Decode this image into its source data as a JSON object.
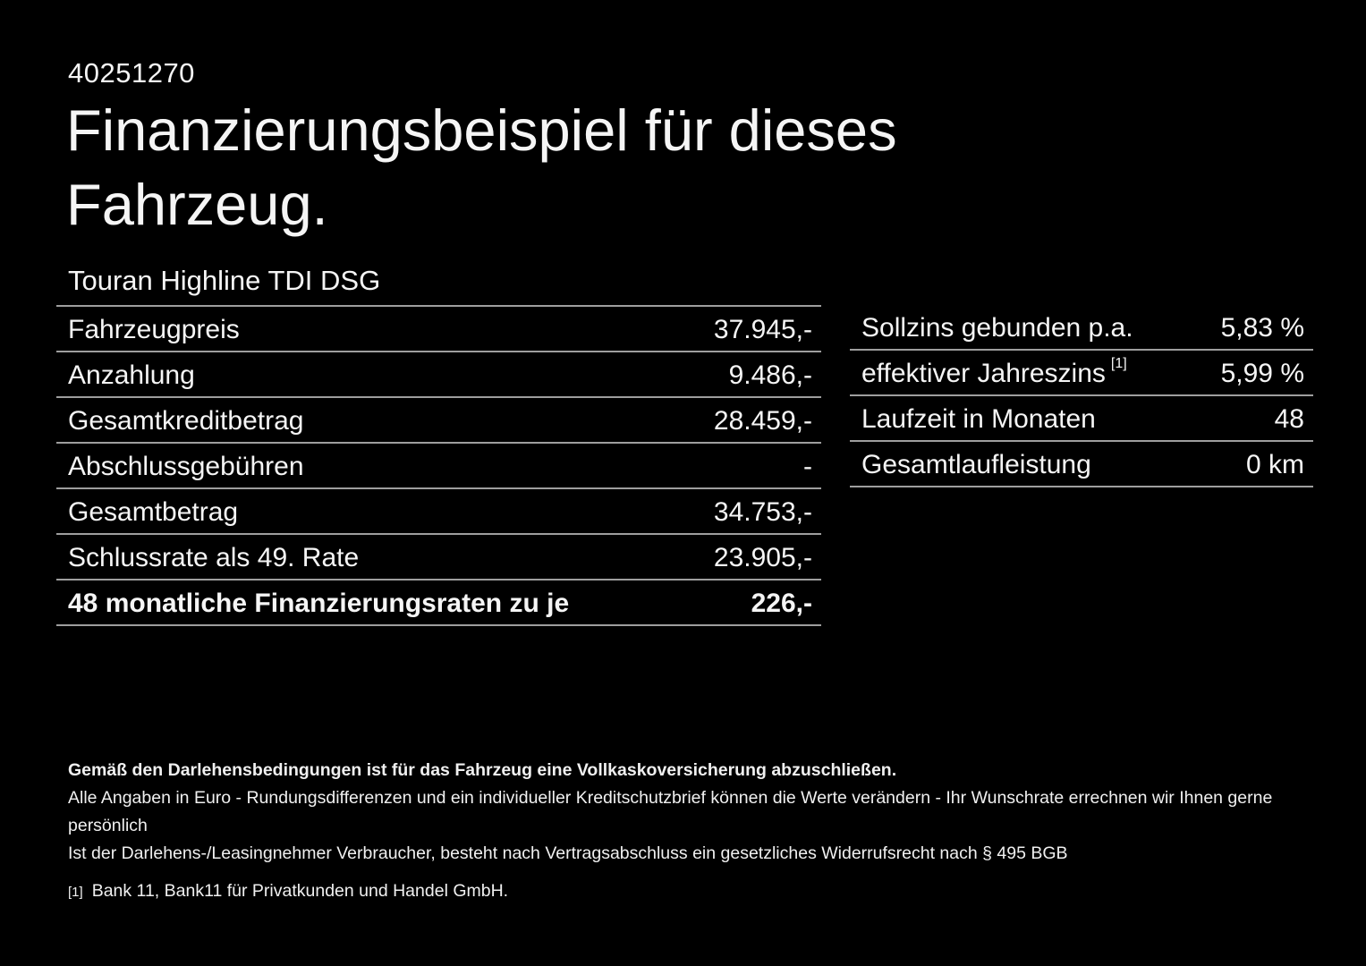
{
  "header": {
    "vehicle_id": "40251270",
    "title": "Finanzierungsbeispiel für dieses Fahrzeug.",
    "model": "Touran Highline TDI DSG"
  },
  "left_table": {
    "rows": [
      {
        "label": "Fahrzeugpreis",
        "value": "37.945,-"
      },
      {
        "label": "Anzahlung",
        "value": "9.486,-"
      },
      {
        "label": "Gesamtkreditbetrag",
        "value": "28.459,-"
      },
      {
        "label": "Abschlussgebühren",
        "value": "-"
      },
      {
        "label": "Gesamtbetrag",
        "value": "34.753,-"
      },
      {
        "label": "Schlussrate als 49. Rate",
        "value": "23.905,-"
      },
      {
        "label": "48 monatliche Finanzierungsraten zu je",
        "value": "226,-"
      }
    ]
  },
  "right_table": {
    "rows": [
      {
        "label": "Sollzins gebunden p.a.",
        "sup": "",
        "value": "5,83 %"
      },
      {
        "label": "effektiver Jahreszins",
        "sup": "[1]",
        "value": "5,99 %"
      },
      {
        "label": "Laufzeit in Monaten",
        "sup": "",
        "value": "48"
      },
      {
        "label": "Gesamtlaufleistung",
        "sup": "",
        "value": "0 km"
      }
    ]
  },
  "fine_print": {
    "line1": "Gemäß den Darlehensbedingungen ist für das Fahrzeug eine Vollkaskoversicherung abzuschließen.",
    "line2": "Alle Angaben in Euro - Rundungsdifferenzen und ein individueller Kreditschutzbrief können die Werte verändern - Ihr Wunschrate errechnen wir Ihnen gerne persönlich",
    "line3": "Ist der Darlehens-/Leasingnehmer Verbraucher, besteht nach Vertragsabschluss ein gesetzliches Widerrufsrecht nach § 495 BGB",
    "footnote_marker": "[1]",
    "footnote_text": "Bank 11, Bank11 für Privatkunden und Handel GmbH."
  },
  "colors": {
    "background": "#000000",
    "text": "#f5f5f5",
    "divider": "#9e9e9e"
  }
}
